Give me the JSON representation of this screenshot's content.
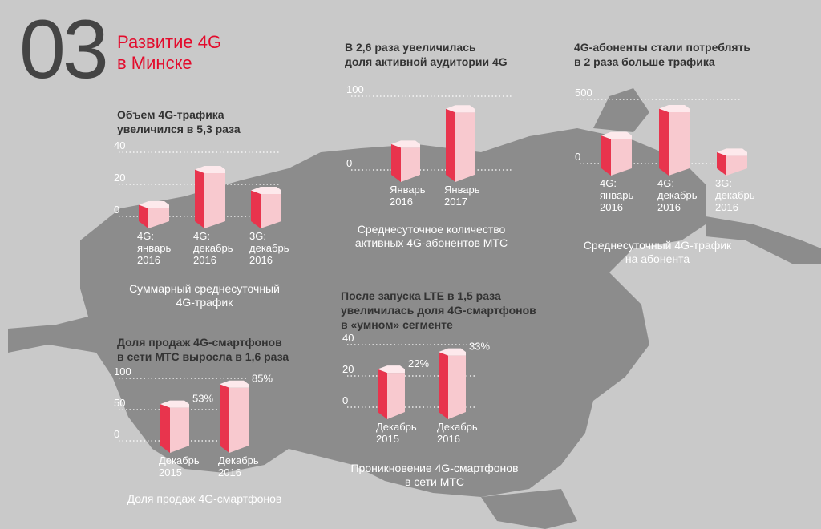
{
  "section": {
    "number": "03",
    "title_line1": "Развитие 4G",
    "title_line2": "в Минске"
  },
  "colors": {
    "accent": "#e30b2c",
    "bar_front": "#f8c9cf",
    "bar_side": "#e8344d",
    "bar_top": "#fde9ec",
    "background": "#c9c9c9",
    "map": "#8c8c8c"
  },
  "headings": {
    "traffic_1": "Объем 4G-трафика",
    "traffic_2": "увеличился в 5,3 раза",
    "audience_1": "В 2,6 раза увеличилась",
    "audience_2": "доля активной аудитории 4G",
    "subs_1": "4G-абоненты стали потреблять",
    "subs_2": "в 2 раза больше трафика",
    "sales_1": "Доля продаж 4G-смартфонов",
    "sales_2": "в сети МТС выросла в 1,6 раза",
    "lte_1": "После запуска LTE в 1,5 раза",
    "lte_2": "увеличилась доля 4G-смартфонов",
    "lte_3": "в «умном» сегменте"
  },
  "captions": {
    "traffic_1": "Суммарный среднесуточный",
    "traffic_2": "4G-трафик",
    "audience_1": "Среднесуточное количество",
    "audience_2": "активных 4G-абонентов МТС",
    "subs_1": "Среднесуточный 4G-трафик",
    "subs_2": "на абонента",
    "sales_1": "Доля продаж 4G-смартфонов",
    "lte_1": "Проникновение 4G-смартфонов",
    "lte_2": "в сети МТС"
  },
  "chart_data": [
    {
      "id": "traffic",
      "type": "bar",
      "yticks": [
        "0",
        "20",
        "40"
      ],
      "ylim": [
        0,
        40
      ],
      "categories": [
        [
          "4G:",
          "январь",
          "2016"
        ],
        [
          "4G:",
          "декабрь",
          "2016"
        ],
        [
          "3G:",
          "декабрь",
          "2016"
        ]
      ],
      "values": [
        5,
        27,
        14
      ],
      "data_labels": []
    },
    {
      "id": "audience",
      "type": "bar",
      "yticks": [
        "0",
        "100"
      ],
      "ylim": [
        0,
        100
      ],
      "categories": [
        [
          "Январь",
          "2016"
        ],
        [
          "Январь",
          "2017"
        ]
      ],
      "values": [
        30,
        78
      ],
      "data_labels": []
    },
    {
      "id": "subs",
      "type": "bar",
      "yticks": [
        "0",
        "500"
      ],
      "ylim": [
        0,
        500
      ],
      "categories": [
        [
          "4G:",
          "январь",
          "2016"
        ],
        [
          "4G:",
          "декабрь",
          "2016"
        ],
        [
          "3G:",
          "декабрь",
          "2016"
        ]
      ],
      "values": [
        190,
        400,
        60
      ],
      "data_labels": []
    },
    {
      "id": "sales",
      "type": "bar",
      "yticks": [
        "0",
        "50",
        "100"
      ],
      "ylim": [
        0,
        100
      ],
      "categories": [
        [
          "Декабрь",
          "2015"
        ],
        [
          "Декабрь",
          "2016"
        ]
      ],
      "values": [
        53,
        85
      ],
      "data_labels": [
        "53%",
        "85%"
      ]
    },
    {
      "id": "lte",
      "type": "bar",
      "yticks": [
        "0",
        "20",
        "40"
      ],
      "ylim": [
        0,
        40
      ],
      "categories": [
        [
          "Декабрь",
          "2015"
        ],
        [
          "Декабрь",
          "2016"
        ]
      ],
      "values": [
        22,
        33
      ],
      "data_labels": [
        "22%",
        "33%"
      ]
    }
  ]
}
